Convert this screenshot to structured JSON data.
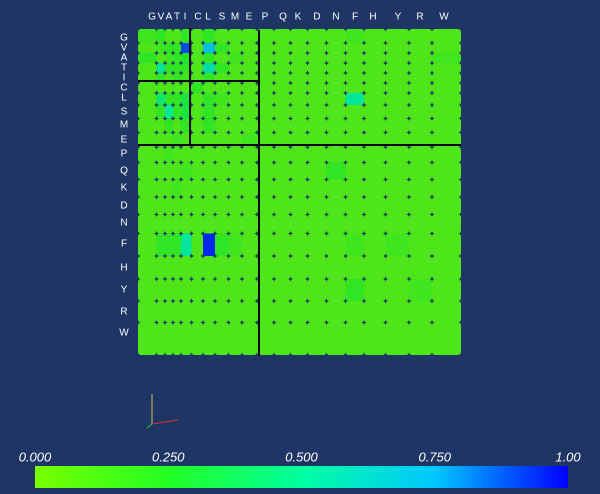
{
  "chart_data": {
    "type": "heatmap",
    "x": [
      "G",
      "V",
      "A",
      "T",
      "I",
      "C",
      "L",
      "S",
      "M",
      "E",
      "P",
      "Q",
      "K",
      "D",
      "N",
      "F",
      "H",
      "Y",
      "R",
      "W"
    ],
    "y": [
      "G",
      "V",
      "A",
      "T",
      "I",
      "C",
      "L",
      "S",
      "M",
      "E",
      "P",
      "Q",
      "K",
      "D",
      "N",
      "F",
      "H",
      "Y",
      "R",
      "W"
    ],
    "values": [
      [
        0.15,
        0.2,
        0.1,
        0.1,
        0.2,
        0.1,
        0.2,
        0.1,
        0.1,
        0.1,
        0.1,
        0.1,
        0.1,
        0.1,
        0.1,
        0.15,
        0.1,
        0.1,
        0.1,
        0.1
      ],
      [
        0.1,
        0.15,
        0.2,
        0.2,
        0.9,
        0.1,
        0.7,
        0.2,
        0.1,
        0.1,
        0.1,
        0.1,
        0.1,
        0.1,
        0.1,
        0.1,
        0.1,
        0.1,
        0.1,
        0.1
      ],
      [
        0.2,
        0.1,
        0.15,
        0.2,
        0.25,
        0.1,
        0.2,
        0.1,
        0.15,
        0.1,
        0.1,
        0.1,
        0.1,
        0.1,
        0.1,
        0.1,
        0.1,
        0.1,
        0.1,
        0.15
      ],
      [
        0.1,
        0.5,
        0.2,
        0.2,
        0.2,
        0.1,
        0.55,
        0.2,
        0.1,
        0.1,
        0.1,
        0.1,
        0.1,
        0.1,
        0.1,
        0.1,
        0.1,
        0.1,
        0.1,
        0.1
      ],
      [
        0.1,
        0.2,
        0.1,
        0.2,
        0.15,
        0.1,
        0.2,
        0.1,
        0.1,
        0.1,
        0.1,
        0.1,
        0.1,
        0.1,
        0.1,
        0.1,
        0.1,
        0.1,
        0.1,
        0.1
      ],
      [
        0.1,
        0.1,
        0.1,
        0.1,
        0.1,
        0.2,
        0.1,
        0.1,
        0.1,
        0.1,
        0.1,
        0.1,
        0.1,
        0.1,
        0.1,
        0.1,
        0.1,
        0.1,
        0.1,
        0.1
      ],
      [
        0.1,
        0.4,
        0.2,
        0.2,
        0.3,
        0.1,
        0.2,
        0.15,
        0.1,
        0.1,
        0.1,
        0.1,
        0.1,
        0.1,
        0.1,
        0.5,
        0.1,
        0.1,
        0.1,
        0.1
      ],
      [
        0.1,
        0.2,
        0.5,
        0.2,
        0.3,
        0.1,
        0.2,
        0.1,
        0.1,
        0.1,
        0.1,
        0.1,
        0.1,
        0.1,
        0.1,
        0.1,
        0.1,
        0.1,
        0.1,
        0.1
      ],
      [
        0.1,
        0.1,
        0.2,
        0.1,
        0.2,
        0.1,
        0.2,
        0.1,
        0.1,
        0.1,
        0.1,
        0.1,
        0.1,
        0.1,
        0.1,
        0.1,
        0.1,
        0.1,
        0.1,
        0.1
      ],
      [
        0.1,
        0.1,
        0.1,
        0.15,
        0.1,
        0.1,
        0.1,
        0.1,
        0.1,
        0.15,
        0.1,
        0.1,
        0.1,
        0.1,
        0.1,
        0.1,
        0.1,
        0.1,
        0.1,
        0.1
      ],
      [
        0.1,
        0.1,
        0.15,
        0.1,
        0.1,
        0.1,
        0.1,
        0.1,
        0.1,
        0.1,
        0.1,
        0.1,
        0.1,
        0.1,
        0.1,
        0.1,
        0.1,
        0.1,
        0.1,
        0.1
      ],
      [
        0.1,
        0.1,
        0.1,
        0.1,
        0.15,
        0.1,
        0.1,
        0.1,
        0.1,
        0.1,
        0.1,
        0.1,
        0.1,
        0.1,
        0.2,
        0.1,
        0.1,
        0.1,
        0.1,
        0.1
      ],
      [
        0.1,
        0.1,
        0.1,
        0.15,
        0.1,
        0.1,
        0.1,
        0.1,
        0.1,
        0.1,
        0.1,
        0.1,
        0.1,
        0.1,
        0.1,
        0.1,
        0.1,
        0.1,
        0.1,
        0.1
      ],
      [
        0.1,
        0.1,
        0.1,
        0.1,
        0.1,
        0.1,
        0.1,
        0.1,
        0.1,
        0.1,
        0.1,
        0.1,
        0.1,
        0.1,
        0.1,
        0.1,
        0.1,
        0.1,
        0.1,
        0.1
      ],
      [
        0.1,
        0.1,
        0.1,
        0.1,
        0.1,
        0.1,
        0.1,
        0.1,
        0.1,
        0.1,
        0.1,
        0.1,
        0.1,
        0.1,
        0.1,
        0.1,
        0.1,
        0.1,
        0.1,
        0.1
      ],
      [
        0.1,
        0.2,
        0.2,
        0.2,
        0.5,
        0.1,
        0.95,
        0.2,
        0.15,
        0.1,
        0.1,
        0.1,
        0.1,
        0.1,
        0.1,
        0.15,
        0.1,
        0.15,
        0.1,
        0.1
      ],
      [
        0.1,
        0.1,
        0.1,
        0.1,
        0.1,
        0.1,
        0.1,
        0.1,
        0.1,
        0.1,
        0.1,
        0.1,
        0.1,
        0.1,
        0.1,
        0.1,
        0.1,
        0.1,
        0.1,
        0.1
      ],
      [
        0.1,
        0.1,
        0.1,
        0.1,
        0.1,
        0.1,
        0.1,
        0.1,
        0.1,
        0.1,
        0.1,
        0.1,
        0.1,
        0.1,
        0.1,
        0.2,
        0.1,
        0.1,
        0.15,
        0.1
      ],
      [
        0.1,
        0.1,
        0.1,
        0.1,
        0.1,
        0.1,
        0.1,
        0.1,
        0.1,
        0.1,
        0.1,
        0.1,
        0.1,
        0.1,
        0.1,
        0.1,
        0.1,
        0.1,
        0.1,
        0.1
      ],
      [
        0.1,
        0.1,
        0.1,
        0.1,
        0.1,
        0.1,
        0.1,
        0.1,
        0.1,
        0.1,
        0.1,
        0.1,
        0.1,
        0.1,
        0.1,
        0.1,
        0.1,
        0.1,
        0.1,
        0.1
      ]
    ],
    "colorscale": [
      "#77ff00",
      "#22ff22",
      "#00ffa0",
      "#00c8ff",
      "#0000ff"
    ],
    "clim": [
      0,
      1
    ],
    "cticks": [
      {
        "value": 0,
        "label": "0.000"
      },
      {
        "value": 0.25,
        "label": "0.250"
      },
      {
        "value": 0.5,
        "label": "0.500"
      },
      {
        "value": 0.75,
        "label": "0.750"
      },
      {
        "value": 1,
        "label": "1.00"
      }
    ]
  }
}
